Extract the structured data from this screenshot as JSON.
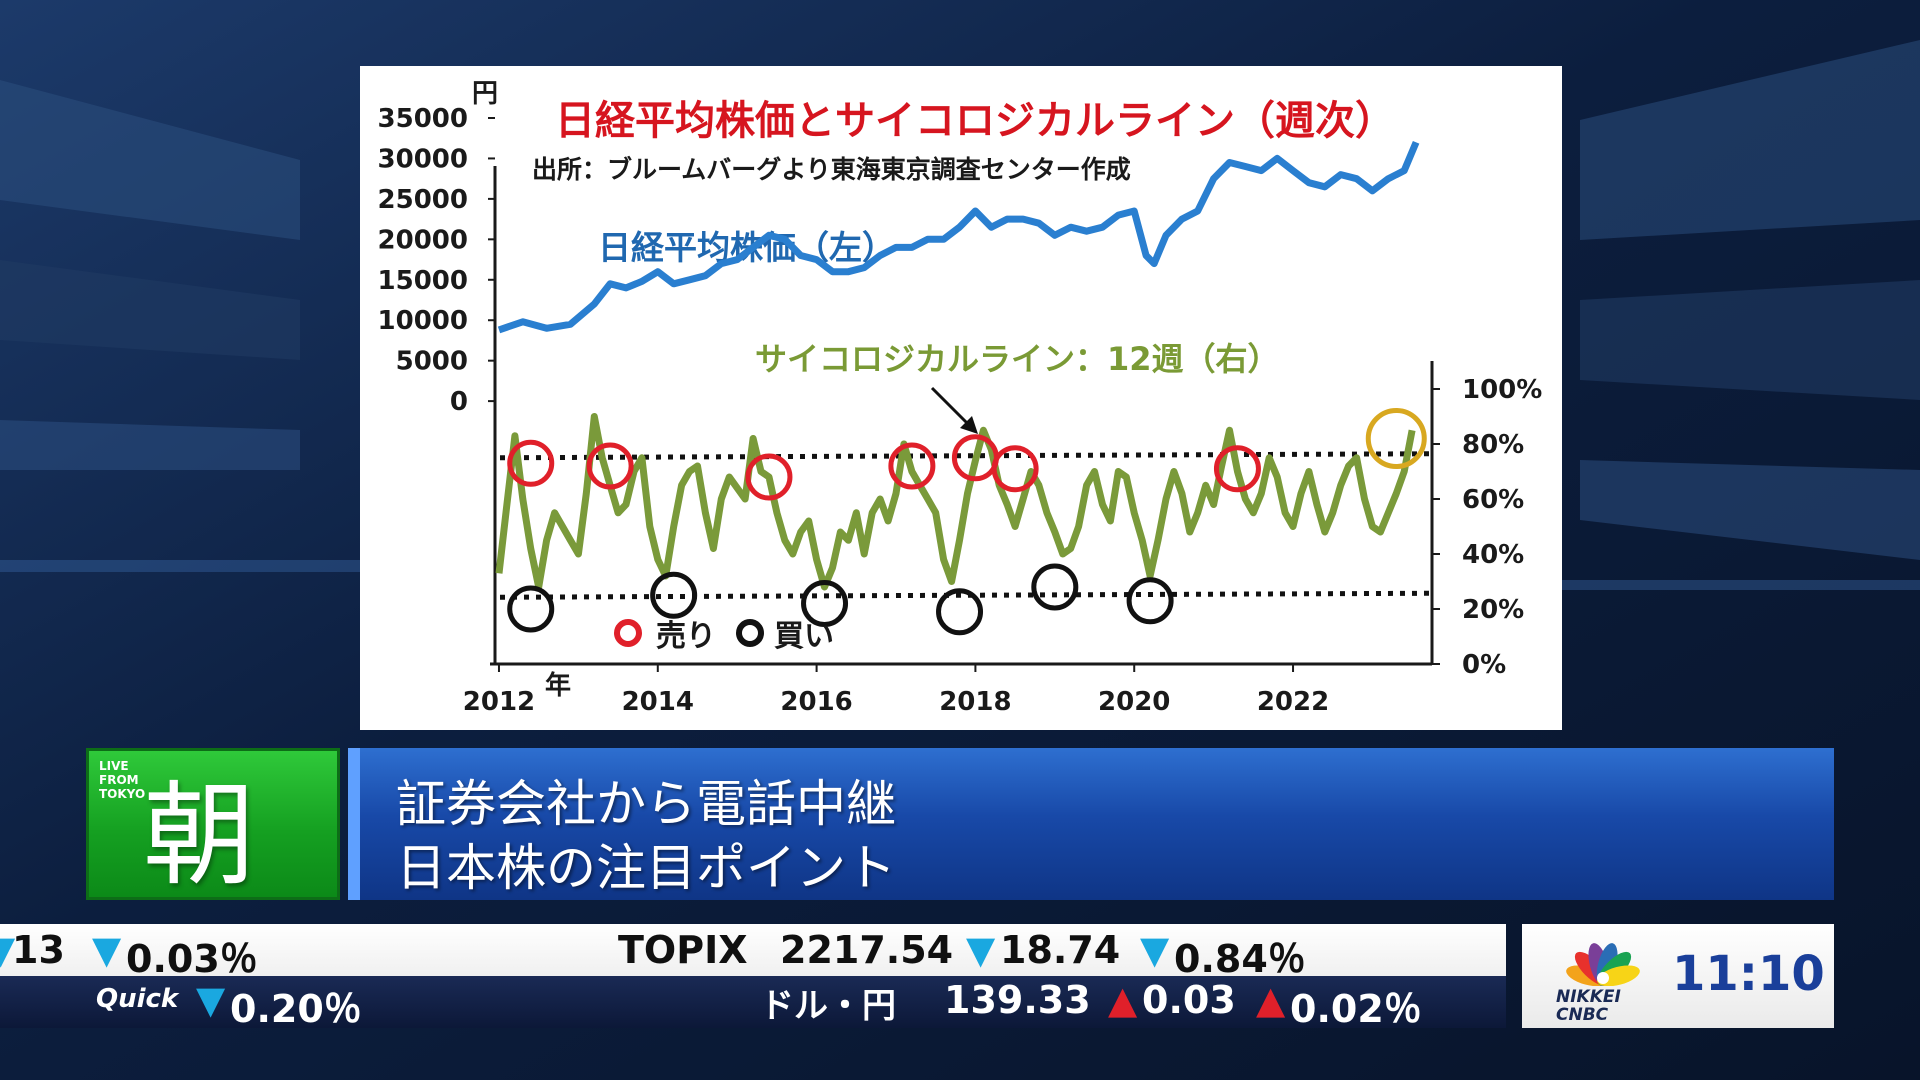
{
  "chart_data": {
    "type": "line",
    "title": "日経平均株価とサイコロジカルライン（週次）",
    "source": "出所：ブルームバーグより東海東京調査センター作成",
    "x_unit": "年",
    "x_ticks": [
      "2012",
      "2014",
      "2016",
      "2018",
      "2020",
      "2022"
    ],
    "y_left_unit": "円",
    "y_left_ticks": [
      "35000",
      "30000",
      "25000",
      "20000",
      "15000",
      "10000",
      "5000",
      "0"
    ],
    "y_left_range": [
      -32500,
      35000
    ],
    "y_right_ticks": [
      "100%",
      "80%",
      "60%",
      "40%",
      "20%",
      "0%"
    ],
    "y_right_range": [
      0,
      100
    ],
    "series": [
      {
        "name": "日経平均株価（左）",
        "axis": "left",
        "color": "#2a7fd0",
        "x": [
          2012.0,
          2012.3,
          2012.6,
          2012.9,
          2013.2,
          2013.4,
          2013.6,
          2013.8,
          2014.0,
          2014.2,
          2014.4,
          2014.6,
          2014.8,
          2015.0,
          2015.2,
          2015.4,
          2015.6,
          2015.8,
          2016.0,
          2016.2,
          2016.4,
          2016.6,
          2016.8,
          2017.0,
          2017.2,
          2017.4,
          2017.6,
          2017.8,
          2018.0,
          2018.2,
          2018.4,
          2018.6,
          2018.8,
          2019.0,
          2019.2,
          2019.4,
          2019.6,
          2019.8,
          2020.0,
          2020.15,
          2020.25,
          2020.4,
          2020.6,
          2020.8,
          2021.0,
          2021.2,
          2021.4,
          2021.6,
          2021.8,
          2022.0,
          2022.2,
          2022.4,
          2022.6,
          2022.8,
          2023.0,
          2023.2,
          2023.4,
          2023.55
        ],
        "y": [
          8800,
          9800,
          9000,
          9500,
          12000,
          14500,
          14000,
          14800,
          16000,
          14500,
          15000,
          15500,
          17000,
          17500,
          19000,
          20500,
          20000,
          18000,
          17500,
          16000,
          16000,
          16500,
          18000,
          19000,
          19000,
          20000,
          20000,
          21500,
          23500,
          21500,
          22500,
          22500,
          22000,
          20500,
          21500,
          21000,
          21500,
          23000,
          23500,
          18000,
          17000,
          20500,
          22500,
          23500,
          27500,
          29500,
          29000,
          28500,
          30000,
          28500,
          27000,
          26500,
          28000,
          27500,
          26000,
          27500,
          28500,
          32000
        ]
      },
      {
        "name": "サイコロジカルライン：12週（右）",
        "axis": "right",
        "color": "#7a9a3a",
        "x": [
          2012.0,
          2012.1,
          2012.2,
          2012.3,
          2012.4,
          2012.5,
          2012.6,
          2012.7,
          2012.8,
          2012.9,
          2013.0,
          2013.1,
          2013.2,
          2013.3,
          2013.4,
          2013.5,
          2013.6,
          2013.7,
          2013.8,
          2013.9,
          2014.0,
          2014.1,
          2014.2,
          2014.3,
          2014.4,
          2014.5,
          2014.6,
          2014.7,
          2014.8,
          2014.9,
          2015.0,
          2015.1,
          2015.2,
          2015.3,
          2015.4,
          2015.5,
          2015.6,
          2015.7,
          2015.8,
          2015.9,
          2016.0,
          2016.1,
          2016.2,
          2016.3,
          2016.4,
          2016.5,
          2016.6,
          2016.7,
          2016.8,
          2016.9,
          2017.0,
          2017.1,
          2017.2,
          2017.3,
          2017.4,
          2017.5,
          2017.6,
          2017.7,
          2017.8,
          2017.9,
          2018.0,
          2018.1,
          2018.2,
          2018.3,
          2018.4,
          2018.5,
          2018.6,
          2018.7,
          2018.8,
          2018.9,
          2019.0,
          2019.1,
          2019.2,
          2019.3,
          2019.4,
          2019.5,
          2019.6,
          2019.7,
          2019.8,
          2019.9,
          2020.0,
          2020.1,
          2020.2,
          2020.3,
          2020.4,
          2020.5,
          2020.6,
          2020.7,
          2020.8,
          2020.9,
          2021.0,
          2021.1,
          2021.2,
          2021.3,
          2021.4,
          2021.5,
          2021.6,
          2021.7,
          2021.8,
          2021.9,
          2022.0,
          2022.1,
          2022.2,
          2022.3,
          2022.4,
          2022.5,
          2022.6,
          2022.7,
          2022.8,
          2022.9,
          2023.0,
          2023.1,
          2023.2,
          2023.3,
          2023.4,
          2023.5
        ],
        "y": [
          33,
          58,
          83,
          60,
          42,
          28,
          45,
          55,
          50,
          45,
          40,
          62,
          90,
          75,
          65,
          55,
          58,
          70,
          75,
          50,
          38,
          32,
          50,
          65,
          70,
          72,
          55,
          42,
          60,
          68,
          64,
          60,
          82,
          70,
          68,
          55,
          45,
          40,
          48,
          52,
          38,
          28,
          35,
          48,
          45,
          55,
          40,
          55,
          60,
          52,
          62,
          80,
          70,
          65,
          60,
          55,
          38,
          30,
          45,
          62,
          74,
          85,
          78,
          65,
          58,
          50,
          60,
          70,
          65,
          55,
          48,
          40,
          42,
          50,
          65,
          70,
          58,
          52,
          70,
          68,
          55,
          45,
          32,
          45,
          60,
          70,
          62,
          48,
          55,
          65,
          58,
          72,
          85,
          70,
          60,
          55,
          62,
          75,
          68,
          55,
          50,
          62,
          70,
          58,
          48,
          55,
          65,
          72,
          75,
          60,
          50,
          48,
          55,
          62,
          70,
          85
        ]
      }
    ],
    "thresholds_pct": [
      75,
      25
    ],
    "sell_markers": [
      {
        "x": 2012.4,
        "y": 73
      },
      {
        "x": 2013.4,
        "y": 72
      },
      {
        "x": 2015.4,
        "y": 68
      },
      {
        "x": 2017.2,
        "y": 72
      },
      {
        "x": 2018.0,
        "y": 75
      },
      {
        "x": 2018.5,
        "y": 71
      },
      {
        "x": 2021.3,
        "y": 71
      }
    ],
    "buy_markers": [
      {
        "x": 2012.4,
        "y": 20
      },
      {
        "x": 2014.2,
        "y": 25
      },
      {
        "x": 2016.1,
        "y": 22
      },
      {
        "x": 2017.8,
        "y": 19
      },
      {
        "x": 2019.0,
        "y": 28
      },
      {
        "x": 2020.2,
        "y": 23
      }
    ],
    "current_marker": {
      "x": 2023.3,
      "y": 82
    },
    "legend": {
      "sell": "売り",
      "buy": "買い"
    },
    "colors": {
      "sell": "#e0202a",
      "buy": "#111111",
      "current": "#d8a820",
      "threshold": "#111111"
    }
  },
  "lower_third": {
    "live_label": "LIVE\nFROM\nTOKYO",
    "program_char": "朝",
    "headline_1": "証券会社から電話中継",
    "headline_2": "日本株の注目ポイント"
  },
  "ticker": {
    "row1": {
      "partial_value": "13",
      "partial_pct": "0.03％",
      "index_name": "TOPIX",
      "index_value": "2217.54",
      "index_change": "18.74",
      "index_pct": "0.84％"
    },
    "row2": {
      "source": "Quick",
      "quick_pct": "0.20％",
      "fx_name": "ドル・円",
      "fx_value": "139.33",
      "fx_change": "0.03",
      "fx_pct": "0.02％"
    }
  },
  "broadcaster": {
    "logo_text": "NIKKEI\nCNBC",
    "clock": "11:10",
    "logo_colors": [
      "#f3a31b",
      "#e8312c",
      "#7a3f98",
      "#2a6db5",
      "#1aa352",
      "#f7d417"
    ]
  }
}
